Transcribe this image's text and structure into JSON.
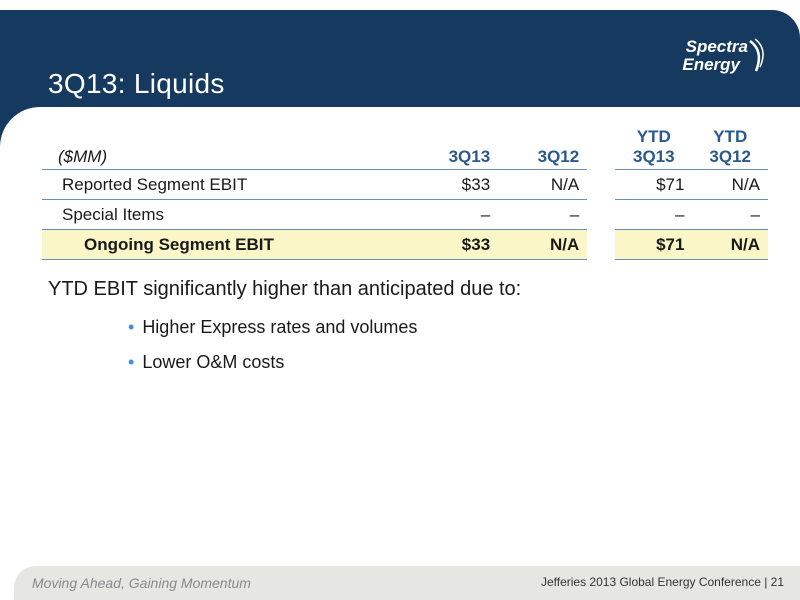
{
  "title": "3Q13: Liquids",
  "logo": {
    "line1": "Spectra",
    "line2": "Energy"
  },
  "table": {
    "unit_label": "($MM)",
    "columns": [
      {
        "line1": "",
        "line2": "3Q13"
      },
      {
        "line1": "",
        "line2": "3Q12"
      },
      {
        "line1": "YTD",
        "line2": "3Q13"
      },
      {
        "line1": "YTD",
        "line2": "3Q12"
      }
    ],
    "rows": [
      {
        "label": "Reported Segment EBIT",
        "values": [
          "$33",
          "N/A",
          "$71",
          "N/A"
        ]
      },
      {
        "label": "Special Items",
        "values": [
          "–",
          "–",
          "–",
          "–"
        ]
      },
      {
        "label": "Ongoing Segment EBIT",
        "values": [
          "$33",
          "N/A",
          "$71",
          "N/A"
        ]
      }
    ]
  },
  "lead_text": "YTD EBIT significantly higher than anticipated due to:",
  "bullets": [
    "Higher Express rates and volumes",
    "Lower O&M costs"
  ],
  "footer": {
    "tagline": "Moving Ahead, Gaining Momentum",
    "conference": "Jefferies 2013 Global Energy Conference | 21"
  },
  "colors": {
    "header": "#163a5f",
    "accent": "#2a5a8c",
    "highlight": "#fbf6c8",
    "bullet": "#3f8fd6"
  }
}
